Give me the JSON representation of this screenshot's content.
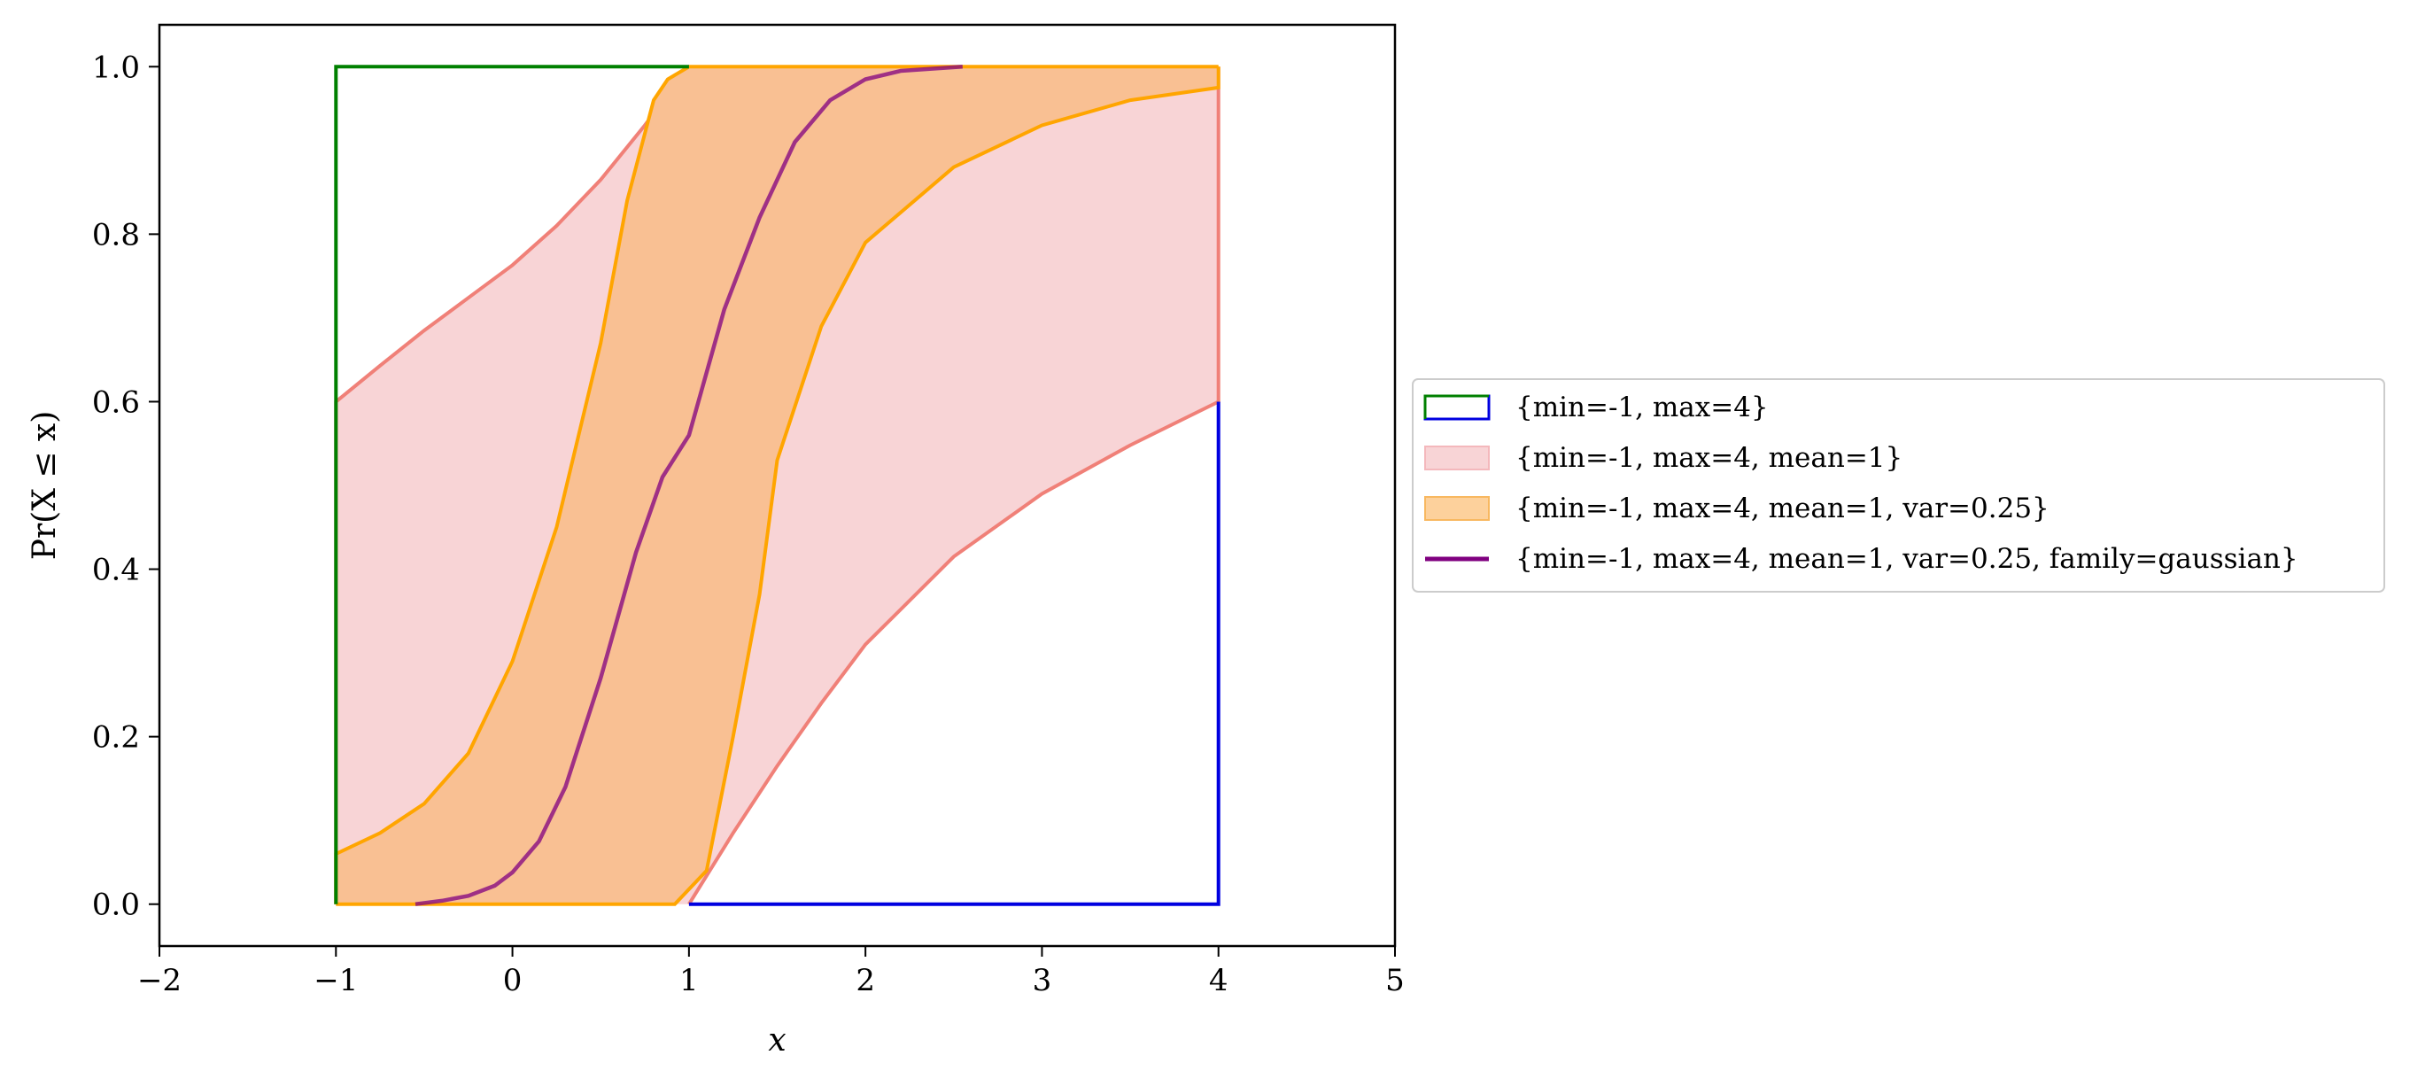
{
  "chart_data": {
    "type": "area",
    "xlabel": "x",
    "ylabel": "Pr(X ≤ x)",
    "xlim": [
      -2,
      5
    ],
    "ylim": [
      -0.05,
      1.05
    ],
    "xticks": [
      -2,
      -1,
      0,
      1,
      2,
      3,
      4,
      5
    ],
    "xtick_labels": [
      "−2",
      "−1",
      "0",
      "1",
      "2",
      "3",
      "4",
      "5"
    ],
    "yticks": [
      0.0,
      0.2,
      0.4,
      0.6,
      0.8,
      1.0
    ],
    "ytick_labels": [
      "0.0",
      "0.2",
      "0.4",
      "0.6",
      "0.8",
      "1.0"
    ],
    "grid": false,
    "legend_position": "outside right, center",
    "series": [
      {
        "name": "{min=-1, max=4}",
        "kind": "bounds-outline",
        "upper_color": "#008000",
        "lower_color": "#0000e0",
        "upper": [
          [
            -1,
            0
          ],
          [
            -1,
            1.0
          ],
          [
            1.0,
            1.0
          ]
        ],
        "lower": [
          [
            1.0,
            0
          ],
          [
            4,
            0
          ],
          [
            4,
            0.6
          ]
        ]
      },
      {
        "name": "{min=-1, max=4, mean=1}",
        "kind": "band",
        "fill": "#f8d4d6",
        "edge": "#f08078",
        "upper": [
          [
            -1,
            0.6
          ],
          [
            -0.75,
            0.643
          ],
          [
            -0.5,
            0.685
          ],
          [
            -0.25,
            0.724
          ],
          [
            0,
            0.763
          ],
          [
            0.25,
            0.81
          ],
          [
            0.5,
            0.865
          ],
          [
            0.75,
            0.93
          ],
          [
            1.0,
            1.0
          ]
        ],
        "lower": [
          [
            1.0,
            0
          ],
          [
            1.25,
            0.085
          ],
          [
            1.5,
            0.165
          ],
          [
            1.75,
            0.24
          ],
          [
            2.0,
            0.31
          ],
          [
            2.5,
            0.415
          ],
          [
            3.0,
            0.49
          ],
          [
            3.5,
            0.548
          ],
          [
            4.0,
            0.6
          ]
        ]
      },
      {
        "name": "{min=-1, max=4, mean=1, var=0.25}",
        "kind": "band",
        "fill": "#f9c093",
        "edge": "#ffa500",
        "upper": [
          [
            -1,
            0.06
          ],
          [
            -0.75,
            0.085
          ],
          [
            -0.5,
            0.12
          ],
          [
            -0.25,
            0.18
          ],
          [
            0,
            0.29
          ],
          [
            0.25,
            0.45
          ],
          [
            0.5,
            0.67
          ],
          [
            0.65,
            0.84
          ],
          [
            0.8,
            0.96
          ],
          [
            0.88,
            0.985
          ],
          [
            1.0,
            1.0
          ],
          [
            4,
            1.0
          ]
        ],
        "lower": [
          [
            0.92,
            0
          ],
          [
            1.1,
            0.04
          ],
          [
            1.25,
            0.2
          ],
          [
            1.4,
            0.37
          ],
          [
            1.5,
            0.53
          ],
          [
            1.75,
            0.69
          ],
          [
            2.0,
            0.79
          ],
          [
            2.5,
            0.88
          ],
          [
            3.0,
            0.93
          ],
          [
            3.5,
            0.96
          ],
          [
            4.0,
            0.975
          ]
        ]
      },
      {
        "name": "{min=-1, max=4, mean=1, var=0.25, family=gaussian}",
        "kind": "line",
        "color": "#800080",
        "points": [
          [
            -0.55,
            0.0
          ],
          [
            -0.4,
            0.004
          ],
          [
            -0.25,
            0.01
          ],
          [
            -0.1,
            0.022
          ],
          [
            0.0,
            0.038
          ],
          [
            0.15,
            0.075
          ],
          [
            0.3,
            0.14
          ],
          [
            0.5,
            0.27
          ],
          [
            0.7,
            0.42
          ],
          [
            0.85,
            0.51
          ],
          [
            1.0,
            0.56
          ],
          [
            1.2,
            0.71
          ],
          [
            1.4,
            0.82
          ],
          [
            1.6,
            0.91
          ],
          [
            1.8,
            0.96
          ],
          [
            2.0,
            0.985
          ],
          [
            2.2,
            0.995
          ],
          [
            2.55,
            1.0
          ]
        ]
      }
    ]
  }
}
